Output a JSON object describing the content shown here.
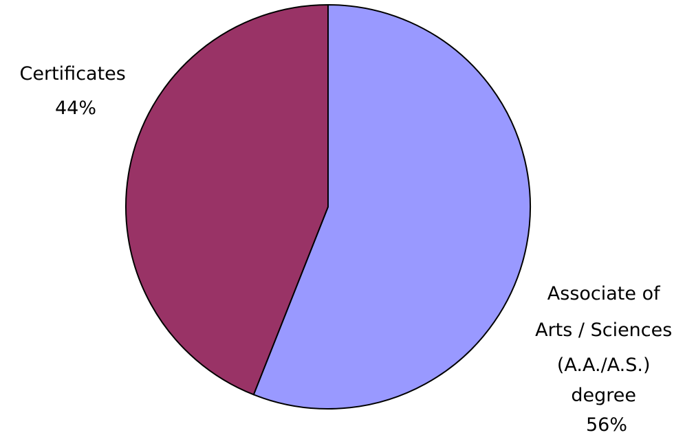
{
  "chart_data": {
    "type": "pie",
    "title": "",
    "start_angle_deg": 0,
    "direction": "clockwise",
    "slices": [
      {
        "name": "Associate of Arts / Sciences (A.A./A.S.) degree",
        "label_lines": [
          "Associate of",
          "Arts / Sciences",
          "(A.A./A.S.)",
          "degree"
        ],
        "value": 56,
        "percent_label": "56%",
        "color": "#9999ff"
      },
      {
        "name": "Certificates",
        "label_lines": [
          "Certificates"
        ],
        "value": 44,
        "percent_label": "44%",
        "color": "#993366"
      }
    ],
    "outline_color": "#000000"
  }
}
